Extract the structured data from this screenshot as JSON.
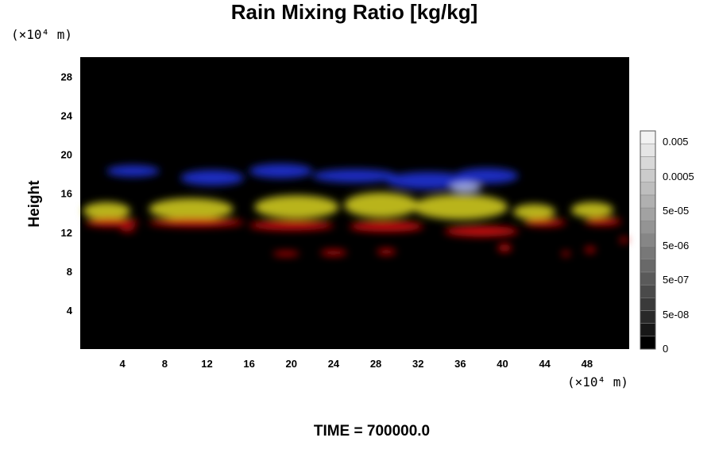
{
  "chart_data": {
    "type": "heatmap",
    "title": "Rain Mixing Ratio [kg/kg]",
    "xlabel": "",
    "ylabel": "Height",
    "x_unit": "(×10⁴ m)",
    "y_unit": "(×10⁴ m)",
    "xlim": [
      0,
      52
    ],
    "ylim": [
      0,
      30
    ],
    "x_ticks": [
      "4",
      "8",
      "12",
      "16",
      "20",
      "24",
      "28",
      "32",
      "36",
      "40",
      "44",
      "48"
    ],
    "y_ticks": [
      "4",
      "8",
      "12",
      "16",
      "20",
      "24",
      "28"
    ],
    "x_tick_values": [
      4,
      8,
      12,
      16,
      20,
      24,
      28,
      32,
      36,
      40,
      44,
      48
    ],
    "y_tick_values": [
      4,
      8,
      12,
      16,
      20,
      24,
      28
    ],
    "background_color": "#000000",
    "colorbar": {
      "labels": [
        "0.005",
        "0.0005",
        "5e-05",
        "5e-06",
        "5e-07",
        "5e-08",
        "0"
      ],
      "levels": 17,
      "color_min": "#000000",
      "color_max": "#f2f2f2"
    },
    "layers": [
      {
        "name": "blue",
        "color": "#1c2fcf",
        "y_range": [
          16.5,
          19.5
        ]
      },
      {
        "name": "yellow",
        "color": "#c9c31e",
        "y_range": [
          13.5,
          16.5
        ]
      },
      {
        "name": "red",
        "color": "#d21212",
        "y_range": [
          11.5,
          14
        ]
      }
    ],
    "blobs": [
      {
        "layer": "blue",
        "cx": 5,
        "cy": 18.3,
        "w": 5,
        "h": 1.2
      },
      {
        "layer": "blue",
        "cx": 12.5,
        "cy": 17.6,
        "w": 6,
        "h": 1.6
      },
      {
        "layer": "blue",
        "cx": 19,
        "cy": 18.3,
        "w": 6,
        "h": 1.5
      },
      {
        "layer": "blue",
        "cx": 26,
        "cy": 17.8,
        "w": 8,
        "h": 1.4
      },
      {
        "layer": "blue",
        "cx": 33,
        "cy": 17.3,
        "w": 8,
        "h": 1.8
      },
      {
        "layer": "blue",
        "cx": 38.5,
        "cy": 17.8,
        "w": 6,
        "h": 1.6
      },
      {
        "layer": "blue",
        "cx": 36.5,
        "cy": 16.6,
        "w": 3,
        "h": 1.0,
        "color": "#a9b4ec"
      },
      {
        "layer": "yellow",
        "cx": 2.5,
        "cy": 14.2,
        "w": 4.5,
        "h": 1.8
      },
      {
        "layer": "yellow",
        "cx": 10.5,
        "cy": 14.4,
        "w": 8,
        "h": 2.2
      },
      {
        "layer": "yellow",
        "cx": 20.5,
        "cy": 14.6,
        "w": 8,
        "h": 2.4
      },
      {
        "layer": "yellow",
        "cx": 28.5,
        "cy": 14.8,
        "w": 7,
        "h": 2.6
      },
      {
        "layer": "yellow",
        "cx": 36,
        "cy": 14.6,
        "w": 9,
        "h": 2.6
      },
      {
        "layer": "yellow",
        "cx": 43,
        "cy": 14.1,
        "w": 4,
        "h": 1.6
      },
      {
        "layer": "yellow",
        "cx": 48.5,
        "cy": 14.3,
        "w": 4,
        "h": 1.6
      },
      {
        "layer": "red",
        "cx": 3,
        "cy": 13.0,
        "w": 5,
        "h": 0.9
      },
      {
        "layer": "red",
        "cx": 11,
        "cy": 13.0,
        "w": 9,
        "h": 0.9
      },
      {
        "layer": "red",
        "cx": 20,
        "cy": 12.7,
        "w": 8,
        "h": 1.0
      },
      {
        "layer": "red",
        "cx": 29,
        "cy": 12.6,
        "w": 7,
        "h": 1.1
      },
      {
        "layer": "red",
        "cx": 38,
        "cy": 12.1,
        "w": 7,
        "h": 1.1
      },
      {
        "layer": "red",
        "cx": 44,
        "cy": 13.0,
        "w": 4,
        "h": 0.8
      },
      {
        "layer": "red",
        "cx": 49.5,
        "cy": 13.1,
        "w": 3.5,
        "h": 0.8
      },
      {
        "layer": "red",
        "cx": 4.5,
        "cy": 12.3,
        "w": 1.5,
        "h": 0.5
      },
      {
        "layer": "red",
        "cx": 19.5,
        "cy": 9.8,
        "w": 2.5,
        "h": 0.5
      },
      {
        "layer": "red",
        "cx": 24,
        "cy": 9.9,
        "w": 2.5,
        "h": 0.6
      },
      {
        "layer": "red",
        "cx": 29,
        "cy": 10.0,
        "w": 1.8,
        "h": 0.6
      },
      {
        "layer": "red",
        "cx": 40.2,
        "cy": 10.4,
        "w": 1.3,
        "h": 0.8
      },
      {
        "layer": "red",
        "cx": 46,
        "cy": 9.8,
        "w": 0.8,
        "h": 0.5
      },
      {
        "layer": "red",
        "cx": 48.3,
        "cy": 10.2,
        "w": 1.0,
        "h": 0.6
      },
      {
        "layer": "red",
        "cx": 51.5,
        "cy": 11.2,
        "w": 0.8,
        "h": 0.6
      }
    ],
    "time_label": "TIME = 700000.0"
  }
}
